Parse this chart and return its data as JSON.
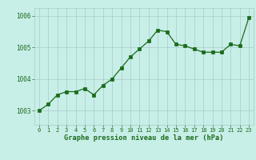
{
  "x": [
    0,
    1,
    2,
    3,
    4,
    5,
    6,
    7,
    8,
    9,
    10,
    11,
    12,
    13,
    14,
    15,
    16,
    17,
    18,
    19,
    20,
    21,
    22,
    23
  ],
  "y": [
    1003.0,
    1003.2,
    1003.5,
    1003.6,
    1003.6,
    1003.7,
    1003.5,
    1003.8,
    1004.0,
    1004.35,
    1004.7,
    1004.95,
    1005.2,
    1005.55,
    1005.5,
    1005.1,
    1005.05,
    1004.95,
    1004.85,
    1004.85,
    1004.85,
    1005.1,
    1005.05,
    1005.95
  ],
  "line_color": "#1a6b1a",
  "marker_color": "#1a6b1a",
  "bg_color": "#c8eee8",
  "grid_color": "#a8ccc8",
  "xlabel": "Graphe pression niveau de la mer (hPa)",
  "xlabel_color": "#1a6b1a",
  "tick_color": "#1a6b1a",
  "yticks": [
    1003,
    1004,
    1005,
    1006
  ],
  "ylim": [
    1002.55,
    1006.25
  ],
  "xlim": [
    -0.5,
    23.5
  ],
  "xtick_labels": [
    "0",
    "1",
    "2",
    "3",
    "4",
    "5",
    "6",
    "7",
    "8",
    "9",
    "10",
    "11",
    "12",
    "13",
    "14",
    "15",
    "16",
    "17",
    "18",
    "19",
    "20",
    "21",
    "22",
    "23"
  ]
}
